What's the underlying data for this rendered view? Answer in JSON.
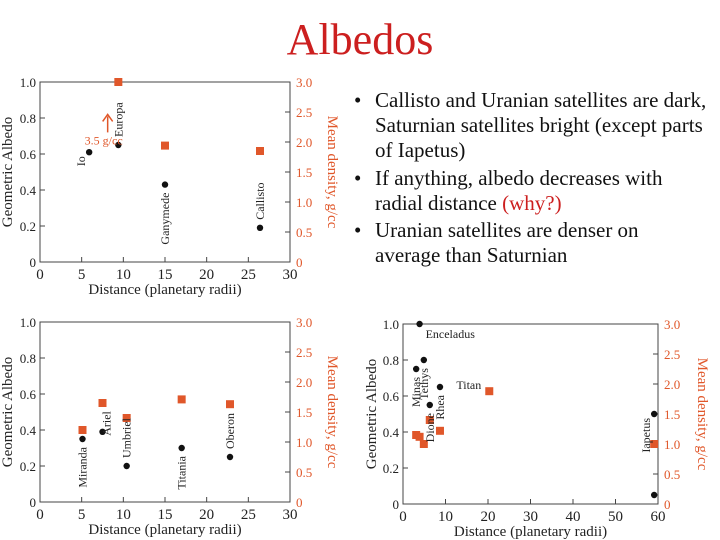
{
  "slide": {
    "title": "Albedos",
    "bullets": [
      {
        "text": "Callisto and Uranian satellites are dark, Saturnian satellites bright (except parts of Iapetus)"
      },
      {
        "text": "If anything, albedo decreases with radial distance ",
        "highlight": "(why?)"
      },
      {
        "text": "Uranian satellites are denser on average than Saturnian"
      }
    ]
  },
  "colors": {
    "albedo": "#111111",
    "density": "#e0572a",
    "title": "#cc1f1f"
  },
  "chart_data": [
    {
      "type": "scatter",
      "name": "jovian",
      "xlabel": "Distance (planetary radii)",
      "ylabel": "Geometric Albedo",
      "y2label": "Mean density, g/cc",
      "xlim": [
        0,
        30
      ],
      "ylim": [
        0,
        1.0
      ],
      "y2lim": [
        0,
        3.0
      ],
      "xticks": [
        0,
        5,
        10,
        15,
        20,
        25,
        30
      ],
      "yticks": [
        "0",
        "0.2",
        "0.4",
        "0.6",
        "0.8",
        "1.0"
      ],
      "y2ticks": [
        "0",
        "0.5",
        "1.0",
        "1.5",
        "2.0",
        "2.5",
        "3.0"
      ],
      "albedo": [
        {
          "x": 5.9,
          "y": 0.61,
          "label": "Io"
        },
        {
          "x": 9.4,
          "y": 0.65,
          "label": "Europa"
        },
        {
          "x": 15.0,
          "y": 0.43,
          "label": "Ganymede"
        },
        {
          "x": 26.4,
          "y": 0.19,
          "label": "Callisto"
        }
      ],
      "density": [
        {
          "x": 9.4,
          "y": 3.0
        },
        {
          "x": 15.0,
          "y": 1.94
        },
        {
          "x": 26.4,
          "y": 1.85
        }
      ],
      "annotation": "3.5 g/cc"
    },
    {
      "type": "scatter",
      "name": "uranian",
      "xlabel": "Distance (planetary radii)",
      "ylabel": "Geometric Albedo",
      "y2label": "Mean density, g/cc",
      "xlim": [
        0,
        30
      ],
      "ylim": [
        0,
        1.0
      ],
      "y2lim": [
        0,
        3.0
      ],
      "xticks": [
        0,
        5,
        10,
        15,
        20,
        25,
        30
      ],
      "yticks": [
        "0",
        "0.2",
        "0.4",
        "0.6",
        "0.8",
        "1.0"
      ],
      "y2ticks": [
        "0",
        "0.5",
        "1.0",
        "1.5",
        "2.0",
        "2.5",
        "3.0"
      ],
      "albedo": [
        {
          "x": 5.1,
          "y": 0.35,
          "label": "Miranda"
        },
        {
          "x": 7.5,
          "y": 0.39,
          "label": "Ariel"
        },
        {
          "x": 10.4,
          "y": 0.2,
          "label": "Umbriel"
        },
        {
          "x": 17.0,
          "y": 0.3,
          "label": "Titania"
        },
        {
          "x": 22.8,
          "y": 0.25,
          "label": "Oberon"
        }
      ],
      "density": [
        {
          "x": 5.1,
          "y": 1.2
        },
        {
          "x": 7.5,
          "y": 1.65
        },
        {
          "x": 10.4,
          "y": 1.4
        },
        {
          "x": 17.0,
          "y": 1.71
        },
        {
          "x": 22.8,
          "y": 1.63
        }
      ]
    },
    {
      "type": "scatter",
      "name": "saturnian",
      "xlabel": "Distance (planetary radii)",
      "ylabel": "Geometric Albedo",
      "y2label": "Mean density, g/cc",
      "xlim": [
        0,
        60
      ],
      "ylim": [
        0,
        1.0
      ],
      "y2lim": [
        0,
        3.0
      ],
      "xticks": [
        0,
        10,
        20,
        30,
        40,
        50,
        60
      ],
      "yticks": [
        "0",
        "0.2",
        "0.4",
        "0.6",
        "0.8",
        "1.0"
      ],
      "y2ticks": [
        "0",
        "0.5",
        "1.0",
        "1.5",
        "2.0",
        "2.5",
        "3.0"
      ],
      "albedo": [
        {
          "x": 3.1,
          "y": 0.75,
          "label": "Minas"
        },
        {
          "x": 3.9,
          "y": 1.0,
          "label": "Enceladus"
        },
        {
          "x": 4.9,
          "y": 0.8,
          "label": "Tethys"
        },
        {
          "x": 6.3,
          "y": 0.55,
          "label": "Dione"
        },
        {
          "x": 8.7,
          "y": 0.65,
          "label": "Rhea"
        },
        {
          "x": 59.1,
          "y": 0.5,
          "label": "Iapetus"
        },
        {
          "x": 59.1,
          "y": 0.05
        }
      ],
      "density": [
        {
          "x": 3.1,
          "y": 1.15
        },
        {
          "x": 3.9,
          "y": 1.12
        },
        {
          "x": 4.9,
          "y": 1.0
        },
        {
          "x": 6.3,
          "y": 1.4
        },
        {
          "x": 8.7,
          "y": 1.22
        },
        {
          "x": 20.3,
          "y": 1.88,
          "label": "Titan"
        },
        {
          "x": 59.1,
          "y": 1.0
        }
      ]
    }
  ]
}
